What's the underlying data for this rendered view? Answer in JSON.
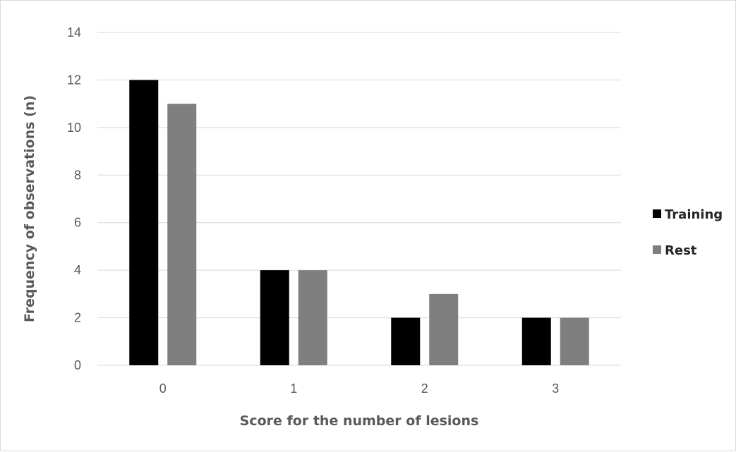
{
  "chart_data": {
    "type": "bar",
    "title": "",
    "categories": [
      "0",
      "1",
      "2",
      "3"
    ],
    "series": [
      {
        "name": "Training",
        "values": [
          12,
          4,
          2,
          2
        ],
        "color": "#000000"
      },
      {
        "name": "Rest",
        "values": [
          11,
          4,
          3,
          2
        ],
        "color": "#7f7f7f"
      }
    ],
    "xlabel": "Score for the number of lesions",
    "ylabel": "Frequency of observations (n)",
    "ylim": [
      0,
      14
    ],
    "yticks": [
      "0",
      "2",
      "4",
      "6",
      "8",
      "10",
      "12",
      "14"
    ],
    "grid": true,
    "gridColor": "#d9d9d9",
    "legend": "right"
  }
}
